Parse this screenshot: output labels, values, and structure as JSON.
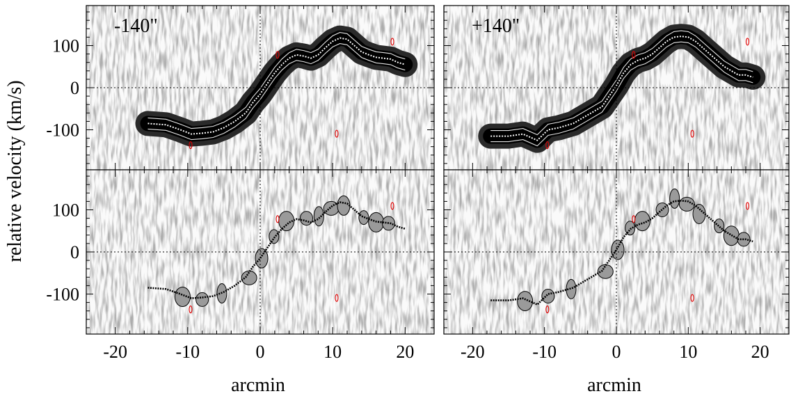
{
  "chart_data": [
    {
      "type": "heatmap",
      "panel": "top-left",
      "label": "-140\"",
      "xlim": [
        -24,
        24
      ],
      "ylim": [
        -195,
        195
      ],
      "xticks": [
        -20,
        -10,
        0,
        10,
        20
      ],
      "yticks": [
        -100,
        0,
        100
      ],
      "xlabel": "",
      "ylabel": "",
      "rotation_curve": {
        "x": [
          -15.5,
          -13,
          -11,
          -9.5,
          -8,
          -6.5,
          -5,
          -3.5,
          -2,
          -1,
          0,
          1,
          2,
          3,
          4,
          5,
          6,
          7,
          8,
          9,
          10,
          11,
          12,
          13,
          14,
          15,
          16,
          17,
          18,
          19,
          20
        ],
        "y": [
          -85,
          -88,
          -100,
          -110,
          -108,
          -105,
          -95,
          -80,
          -60,
          -35,
          -15,
          10,
          35,
          55,
          70,
          78,
          75,
          70,
          78,
          95,
          110,
          118,
          115,
          100,
          85,
          78,
          72,
          70,
          68,
          60,
          55
        ]
      }
    },
    {
      "type": "heatmap",
      "panel": "top-right",
      "label": "+140\"",
      "xlim": [
        -24,
        24
      ],
      "ylim": [
        -195,
        195
      ],
      "xticks": [
        -20,
        -10,
        0,
        10,
        20
      ],
      "yticks": [
        -100,
        0,
        100
      ],
      "xlabel": "",
      "ylabel": "",
      "rotation_curve": {
        "x": [
          -17.5,
          -15,
          -13,
          -11,
          -9.5,
          -8,
          -6,
          -4,
          -2,
          -1,
          0,
          1,
          2,
          3,
          4,
          5,
          6,
          7,
          8,
          9,
          10,
          11,
          12,
          13,
          14,
          15,
          16,
          17,
          18,
          19
        ],
        "y": [
          -115,
          -115,
          -110,
          -125,
          -100,
          -95,
          -85,
          -65,
          -45,
          -20,
          5,
          35,
          55,
          65,
          70,
          80,
          95,
          110,
          120,
          122,
          120,
          110,
          95,
          80,
          65,
          50,
          40,
          30,
          30,
          25
        ]
      }
    },
    {
      "type": "heatmap",
      "panel": "bottom-left",
      "xlim": [
        -24,
        24
      ],
      "ylim": [
        -195,
        195
      ],
      "xticks": [
        -20,
        -10,
        0,
        10,
        20
      ],
      "yticks": [
        -100,
        0,
        100
      ],
      "xlabel": "arcmin",
      "ylabel": "",
      "rotation_curve": {
        "x": [
          -15.5,
          -13,
          -11,
          -9.5,
          -8,
          -6.5,
          -5,
          -3.5,
          -2,
          -1,
          0,
          1,
          2,
          3,
          4,
          5,
          6,
          7,
          8,
          9,
          10,
          11,
          12,
          13,
          14,
          15,
          16,
          17,
          18,
          19,
          20
        ],
        "y": [
          -85,
          -88,
          -100,
          -110,
          -108,
          -105,
          -95,
          -80,
          -60,
          -35,
          -15,
          10,
          35,
          55,
          70,
          78,
          75,
          70,
          78,
          95,
          110,
          118,
          115,
          100,
          85,
          78,
          72,
          70,
          68,
          60,
          55
        ]
      }
    },
    {
      "type": "heatmap",
      "panel": "bottom-right",
      "xlim": [
        -24,
        24
      ],
      "ylim": [
        -195,
        195
      ],
      "xticks": [
        -20,
        -10,
        0,
        10,
        20
      ],
      "yticks": [
        -100,
        0,
        100
      ],
      "xlabel": "arcmin",
      "ylabel": "",
      "rotation_curve": {
        "x": [
          -17.5,
          -15,
          -13,
          -11,
          -9.5,
          -8,
          -6,
          -4,
          -2,
          -1,
          0,
          1,
          2,
          3,
          4,
          5,
          6,
          7,
          8,
          9,
          10,
          11,
          12,
          13,
          14,
          15,
          16,
          17,
          18,
          19
        ],
        "y": [
          -115,
          -115,
          -110,
          -125,
          -100,
          -95,
          -85,
          -65,
          -45,
          -20,
          5,
          35,
          55,
          65,
          70,
          80,
          95,
          110,
          120,
          122,
          120,
          110,
          95,
          80,
          65,
          50,
          40,
          30,
          30,
          25
        ]
      }
    }
  ],
  "shared_ylabel": "relative velocity (km/s)"
}
